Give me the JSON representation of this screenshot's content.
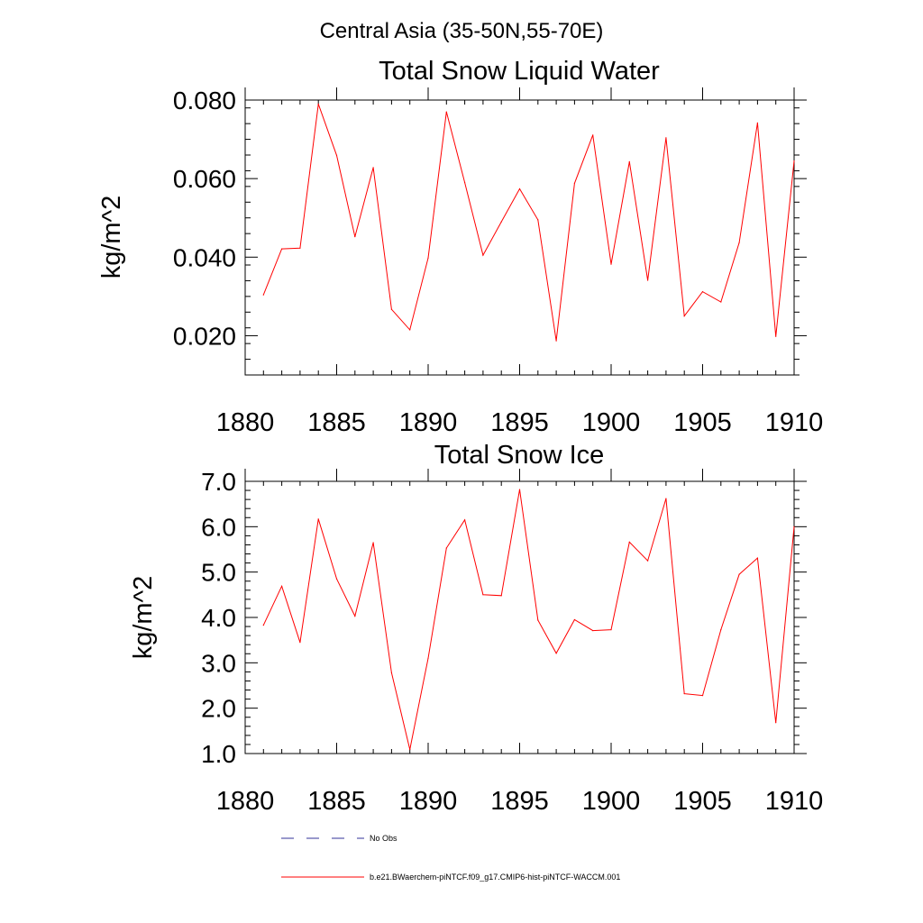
{
  "figure": {
    "suptitle": "Central Asia (35-50N,55-70E)"
  },
  "colors": {
    "model": "#ff0000",
    "obs": "#333399",
    "axis": "#000000"
  },
  "legend": {
    "obs_label": "No Obs",
    "model_label": "b.e21.BWaerchem-piNTCF.f09_g17.CMIP6-hist-piNTCF-WACCM.001"
  },
  "chart_data": [
    {
      "type": "line",
      "title": "Total Snow Liquid Water",
      "xlabel": "",
      "ylabel": "kg/m^2",
      "xlim": [
        1880,
        1910
      ],
      "ylim": [
        0.01,
        0.08
      ],
      "xticks": [
        1880,
        1885,
        1890,
        1895,
        1900,
        1905,
        1910
      ],
      "xtick_labels": [
        "1880",
        "1885",
        "1890",
        "1895",
        "1900",
        "1905",
        "1910"
      ],
      "yticks": [
        0.02,
        0.04,
        0.06,
        0.08
      ],
      "ytick_labels": [
        "0.020",
        "0.040",
        "0.060",
        "0.080"
      ],
      "grid": false,
      "series": [
        {
          "name": "b.e21.BWaerchem-piNTCF.f09_g17.CMIP6-hist-piNTCF-WACCM.001",
          "x": [
            1881,
            1882,
            1883,
            1884,
            1885,
            1886,
            1887,
            1888,
            1889,
            1890,
            1891,
            1892,
            1893,
            1894,
            1895,
            1896,
            1897,
            1898,
            1899,
            1900,
            1901,
            1902,
            1903,
            1904,
            1905,
            1906,
            1907,
            1908,
            1909,
            1910
          ],
          "y": [
            0.0304,
            0.0421,
            0.0423,
            0.079,
            0.0659,
            0.0452,
            0.0628,
            0.0267,
            0.0215,
            0.0398,
            0.077,
            0.059,
            0.0405,
            0.049,
            0.0574,
            0.0495,
            0.0187,
            0.0588,
            0.0711,
            0.0382,
            0.0643,
            0.0341,
            0.0704,
            0.025,
            0.0312,
            0.0286,
            0.0437,
            0.0742,
            0.0198,
            0.0645
          ]
        }
      ]
    },
    {
      "type": "line",
      "title": "Total Snow Ice",
      "xlabel": "",
      "ylabel": "kg/m^2",
      "xlim": [
        1880,
        1910
      ],
      "ylim": [
        1.0,
        7.0
      ],
      "xticks": [
        1880,
        1885,
        1890,
        1895,
        1900,
        1905,
        1910
      ],
      "xtick_labels": [
        "1880",
        "1885",
        "1890",
        "1895",
        "1900",
        "1905",
        "1910"
      ],
      "yticks": [
        1.0,
        2.0,
        3.0,
        4.0,
        5.0,
        6.0,
        7.0
      ],
      "ytick_labels": [
        "1.0",
        "2.0",
        "3.0",
        "4.0",
        "5.0",
        "6.0",
        "7.0"
      ],
      "grid": false,
      "series": [
        {
          "name": "b.e21.BWaerchem-piNTCF.f09_g17.CMIP6-hist-piNTCF-WACCM.001",
          "x": [
            1881,
            1882,
            1883,
            1884,
            1885,
            1886,
            1887,
            1888,
            1889,
            1890,
            1891,
            1892,
            1893,
            1894,
            1895,
            1896,
            1897,
            1898,
            1899,
            1900,
            1901,
            1902,
            1903,
            1904,
            1905,
            1906,
            1907,
            1908,
            1909,
            1910
          ],
          "y": [
            3.83,
            4.69,
            3.45,
            6.17,
            4.85,
            4.03,
            5.65,
            2.78,
            1.09,
            3.1,
            5.53,
            6.15,
            4.5,
            4.48,
            6.82,
            3.94,
            3.21,
            3.95,
            3.71,
            3.73,
            5.66,
            5.25,
            6.62,
            2.32,
            2.28,
            3.73,
            4.95,
            5.31,
            1.68,
            6.0
          ]
        }
      ]
    }
  ]
}
